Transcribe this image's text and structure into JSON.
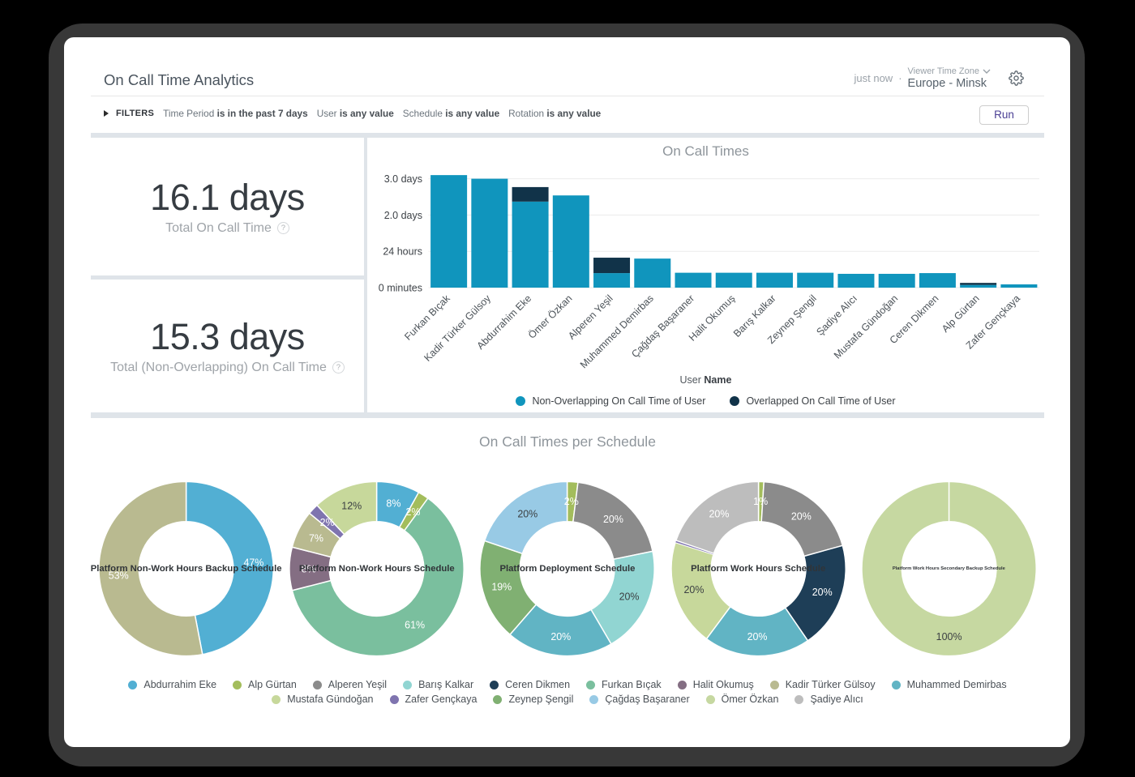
{
  "header": {
    "title": "On Call Time Analytics",
    "updated": "just now",
    "separator": "·",
    "timezone_label": "Viewer Time Zone",
    "timezone_value": "Europe - Minsk"
  },
  "filters": {
    "toggle_label": "FILTERS",
    "items": [
      {
        "label": "Time Period",
        "value": "is in the past 7 days"
      },
      {
        "label": "User",
        "value": "is any value"
      },
      {
        "label": "Schedule",
        "value": "is any value"
      },
      {
        "label": "Rotation",
        "value": "is any value"
      }
    ],
    "run_label": "Run"
  },
  "kpis": [
    {
      "value": "16.1 days",
      "label": "Total On Call Time",
      "help_icon": "?"
    },
    {
      "value": "15.3 days",
      "label": "Total (Non-Overlapping) On Call Time",
      "help_icon": "?"
    }
  ],
  "palette": {
    "Abdurrahim Eke": "#52afd3",
    "Alp Gürtan": "#a3bd5c",
    "Alperen Yeşil": "#8b8b8b",
    "Barış Kalkar": "#91d5d2",
    "Ceren Dikmen": "#1e3e57",
    "Furkan Bıçak": "#7abf9e",
    "Halit Okumuş": "#846e83",
    "Kadir Türker Gülsoy": "#b9ba90",
    "Muhammed Demirbas": "#61b4c4",
    "Mustafa Gündoğan": "#c7d89b",
    "Zafer Gençkaya": "#7f74af",
    "Zeynep Şengil": "#80b072",
    "Çağdaş Başaraner": "#98cae5",
    "Ömer Özkan": "#c6d8a1",
    "Şadiye Alıcı": "#bdbdbd"
  },
  "chart_data": [
    {
      "type": "bar",
      "stacked": true,
      "title": "On Call Times",
      "xlabel_prefix": "User ",
      "xlabel_bold": "Name",
      "ylim": [
        0,
        3.17
      ],
      "grid": true,
      "legend_position": "bottom",
      "yticks": [
        {
          "label": "0 minutes",
          "value": 0
        },
        {
          "label": "24 hours",
          "value": 1
        },
        {
          "label": "2.0 days",
          "value": 2
        },
        {
          "label": "3.0 days",
          "value": 3
        }
      ],
      "categories": [
        "Furkan Bıçak",
        "Kadir Türker Gülsoy",
        "Abdurrahim Eke",
        "Ömer Özkan",
        "Alperen Yeşil",
        "Muhammed Demirbas",
        "Çağdaş Başaraner",
        "Halit Okumuş",
        "Barış Kalkar",
        "Zeynep Şengil",
        "Şadiye Alıcı",
        "Mustafa Gündoğan",
        "Ceren Dikmen",
        "Alp Gürtan",
        "Zafer Gençkaya"
      ],
      "series": [
        {
          "name": "Non-Overlapping On Call Time of User",
          "color": "#1095bd",
          "values_days": [
            3.1,
            3.0,
            2.37,
            2.54,
            0.4,
            0.8,
            0.41,
            0.41,
            0.41,
            0.41,
            0.38,
            0.38,
            0.4,
            0.075,
            0.09
          ]
        },
        {
          "name": "Overlapped On Call Time of User",
          "color": "#113349",
          "values_days": [
            0,
            0,
            0.4,
            0,
            0.425,
            0,
            0,
            0,
            0,
            0,
            0,
            0,
            0,
            0.055,
            0
          ]
        }
      ]
    },
    {
      "type": "donut",
      "title": "Platform Non-Work Hours Backup Schedule",
      "slices": [
        {
          "name": "Abdurrahim Eke",
          "value": 47,
          "label": "47%"
        },
        {
          "name": "Kadir Türker Gülsoy",
          "value": 53,
          "label": "53%"
        }
      ]
    },
    {
      "type": "donut",
      "title": "Platform Non-Work Hours Schedule",
      "slices": [
        {
          "name": "Abdurrahim Eke",
          "value": 8,
          "label": "8%"
        },
        {
          "name": "Alp Gürtan",
          "value": 2,
          "label": "2%"
        },
        {
          "name": "Furkan Bıçak",
          "value": 61,
          "label": "61%"
        },
        {
          "name": "Halit Okumuş",
          "value": 8,
          "label": "8%"
        },
        {
          "name": "Kadir Türker Gülsoy",
          "value": 7,
          "label": "7%"
        },
        {
          "name": "Zafer Gençkaya",
          "value": 2,
          "label": "2%"
        },
        {
          "name": "Mustafa Gündoğan",
          "value": 12,
          "label": "12%"
        }
      ]
    },
    {
      "type": "donut",
      "title": "Platform Deployment Schedule",
      "slices": [
        {
          "name": "Alp Gürtan",
          "value": 2,
          "label": "2%"
        },
        {
          "name": "Alperen Yeşil",
          "value": 20,
          "label": "20%"
        },
        {
          "name": "Barış Kalkar",
          "value": 20,
          "label": "20%"
        },
        {
          "name": "Muhammed Demirbas",
          "value": 20,
          "label": "20%"
        },
        {
          "name": "Zeynep Şengil",
          "value": 19,
          "label": "19%"
        },
        {
          "name": "Çağdaş Başaraner",
          "value": 20,
          "label": "20%"
        }
      ]
    },
    {
      "type": "donut",
      "title": "Platform Work Hours Schedule",
      "slices": [
        {
          "name": "Alp Gürtan",
          "value": 1,
          "label": "1%"
        },
        {
          "name": "Alperen Yeşil",
          "value": 20,
          "label": "20%"
        },
        {
          "name": "Ceren Dikmen",
          "value": 20,
          "label": "20%"
        },
        {
          "name": "Muhammed Demirbas",
          "value": 20,
          "label": "20%"
        },
        {
          "name": "Mustafa Gündoğan",
          "value": 20,
          "label": "20%"
        },
        {
          "name": "Zafer Gençkaya",
          "value": 0.4,
          "label": ""
        },
        {
          "name": "Şadiye Alıcı",
          "value": 20,
          "label": "20%"
        }
      ]
    },
    {
      "type": "donut",
      "title": "Platform Work Hours Secondary Backup Schedule",
      "slices": [
        {
          "name": "Ömer Özkan",
          "value": 100,
          "label": "100%"
        }
      ]
    }
  ],
  "schedule_section": {
    "title": "On Call Times per Schedule",
    "legend_rows": [
      [
        "Abdurrahim Eke",
        "Alp Gürtan",
        "Alperen Yeşil",
        "Barış Kalkar",
        "Ceren Dikmen",
        "Furkan Bıçak",
        "Halit Okumuş",
        "Kadir Türker Gülsoy",
        "Muhammed Demirbas"
      ],
      [
        "Mustafa Gündoğan",
        "Zafer Gençkaya",
        "Zeynep Şengil",
        "Çağdaş Başaraner",
        "Ömer Özkan",
        "Şadiye Alıcı"
      ]
    ]
  }
}
